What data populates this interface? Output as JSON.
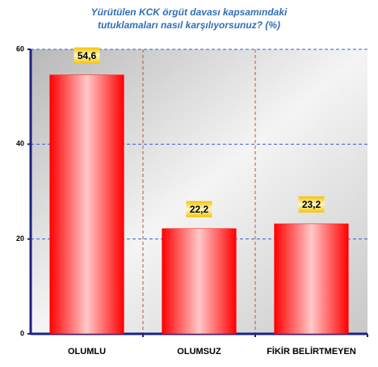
{
  "chart_data": {
    "type": "bar",
    "title": "Yürütülen KCK örgüt davası kapsamındaki tutuklamaları nasıl karşılıyorsunuz? (%)",
    "categories": [
      "OLUMLU",
      "OLUMSUZ",
      "FİKİR BELİRTMEYEN"
    ],
    "values": [
      54.6,
      22.2,
      23.2
    ],
    "value_labels": [
      "54,6",
      "22,2",
      "23,2"
    ],
    "color": "#ff0000",
    "ylim": [
      0,
      60
    ],
    "yticks": [
      0,
      20,
      40,
      60
    ],
    "grid": true
  }
}
